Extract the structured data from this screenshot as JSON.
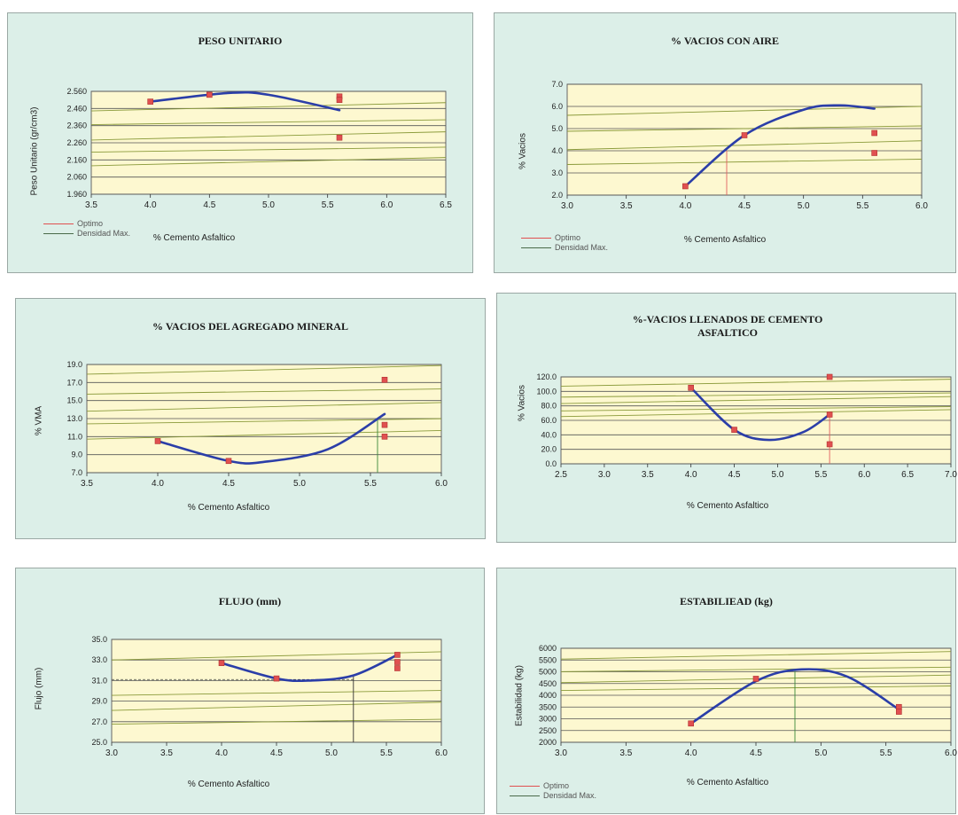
{
  "chart_data": [
    {
      "type": "line",
      "title": "PESO UNITARIO",
      "xlabel": "% Cemento Asfaltico",
      "ylabel": "Peso Unitario (gr/cm3)",
      "xlim": [
        3.5,
        6.5
      ],
      "ylim": [
        1.96,
        2.56
      ],
      "xticks": [
        "3.5",
        "4.0",
        "4.5",
        "5.0",
        "5.5",
        "6.0",
        "6.5"
      ],
      "yticks": [
        "1.960",
        "2.060",
        "2.160",
        "2.260",
        "2.360",
        "2.460",
        "2.560"
      ],
      "points": [
        {
          "x": 4.0,
          "y": 2.5
        },
        {
          "x": 4.5,
          "y": 2.54
        },
        {
          "x": 5.6,
          "y": 2.53
        },
        {
          "x": 5.6,
          "y": 2.51
        },
        {
          "x": 5.6,
          "y": 2.29
        }
      ],
      "curve": [
        {
          "x": 4.0,
          "y": 2.5
        },
        {
          "x": 4.65,
          "y": 2.55
        },
        {
          "x": 5.0,
          "y": 2.54
        },
        {
          "x": 5.6,
          "y": 2.45
        }
      ],
      "guides": {
        "hy": [
          2.47,
          2.38,
          2.3,
          2.22,
          2.15
        ]
      },
      "legend": [
        "Optimo",
        "Densidad Max."
      ]
    },
    {
      "type": "line",
      "title": "% VACIOS CON AIRE",
      "xlabel": "% Cemento Asfaltico",
      "ylabel": "% Vacios",
      "xlim": [
        3.0,
        6.0
      ],
      "ylim": [
        2.0,
        7.0
      ],
      "xticks": [
        "3.0",
        "3.5",
        "4.0",
        "4.5",
        "5.0",
        "5.5",
        "6.0"
      ],
      "yticks": [
        "2.0",
        "3.0",
        "4.0",
        "5.0",
        "6.0",
        "7.0"
      ],
      "points": [
        {
          "x": 4.0,
          "y": 2.4
        },
        {
          "x": 4.5,
          "y": 4.7
        },
        {
          "x": 5.6,
          "y": 4.8
        },
        {
          "x": 5.6,
          "y": 3.9
        }
      ],
      "curve": [
        {
          "x": 4.0,
          "y": 2.4
        },
        {
          "x": 4.5,
          "y": 4.7
        },
        {
          "x": 5.0,
          "y": 5.85
        },
        {
          "x": 5.3,
          "y": 6.05
        },
        {
          "x": 5.6,
          "y": 5.9
        }
      ],
      "guides": {
        "hy": [
          5.8,
          5.0,
          4.25,
          3.5
        ],
        "vx": [
          4.35
        ],
        "vx_color": "#e06060"
      },
      "legend": [
        "Optimo",
        "Densidad Max."
      ]
    },
    {
      "type": "line",
      "title": "% VACIOS DEL AGREGADO MINERAL",
      "xlabel": "% Cemento Asfaltico",
      "ylabel": "% VMA",
      "xlim": [
        3.5,
        6.0
      ],
      "ylim": [
        7.0,
        19.0
      ],
      "xticks": [
        "3.5",
        "4.0",
        "4.5",
        "5.0",
        "5.5",
        "6.0"
      ],
      "yticks": [
        "7.0",
        "9.0",
        "11.0",
        "13.0",
        "15.0",
        "17.0",
        "19.0"
      ],
      "points": [
        {
          "x": 4.0,
          "y": 10.5
        },
        {
          "x": 4.5,
          "y": 8.3
        },
        {
          "x": 5.6,
          "y": 17.3
        },
        {
          "x": 5.6,
          "y": 12.3
        },
        {
          "x": 5.6,
          "y": 11.0
        }
      ],
      "curve": [
        {
          "x": 4.0,
          "y": 10.5
        },
        {
          "x": 4.5,
          "y": 8.3
        },
        {
          "x": 4.75,
          "y": 8.2
        },
        {
          "x": 5.2,
          "y": 9.6
        },
        {
          "x": 5.6,
          "y": 13.5
        }
      ],
      "guides": {
        "hy": [
          18.4,
          16.0,
          14.3,
          12.7,
          11.2
        ],
        "vx": [
          5.55
        ],
        "vx_color": "#3a8a3a"
      },
      "legend": []
    },
    {
      "type": "line",
      "title": "%-VACIOS LLENADOS DE CEMENTO ASFALTICO",
      "xlabel": "% Cemento Asfaltico",
      "ylabel": "% Vacios",
      "xlim": [
        2.5,
        7.0
      ],
      "ylim": [
        0.0,
        120.0
      ],
      "xticks": [
        "2.5",
        "3.0",
        "3.5",
        "4.0",
        "4.5",
        "5.0",
        "5.5",
        "6.0",
        "6.5",
        "7.0"
      ],
      "yticks": [
        "0.0",
        "20.0",
        "40.0",
        "60.0",
        "80.0",
        "100.0",
        "120.0"
      ],
      "points": [
        {
          "x": 4.0,
          "y": 105
        },
        {
          "x": 4.5,
          "y": 47
        },
        {
          "x": 5.6,
          "y": 120
        },
        {
          "x": 5.6,
          "y": 68
        },
        {
          "x": 5.6,
          "y": 27
        }
      ],
      "curve": [
        {
          "x": 4.0,
          "y": 105
        },
        {
          "x": 4.5,
          "y": 47
        },
        {
          "x": 4.9,
          "y": 33
        },
        {
          "x": 5.3,
          "y": 44
        },
        {
          "x": 5.6,
          "y": 68
        }
      ],
      "guides": {
        "hy": [
          112,
          95,
          88,
          76,
          70
        ],
        "vx": [
          5.6
        ],
        "vx_color": "#e06060"
      },
      "legend": []
    },
    {
      "type": "line",
      "title": "FLUJO (mm)",
      "xlabel": "% Cemento Asfaltico",
      "ylabel": "Flujo (mm)",
      "xlim": [
        3.0,
        6.0
      ],
      "ylim": [
        25.0,
        35.0
      ],
      "xticks": [
        "3.0",
        "3.5",
        "4.0",
        "4.5",
        "5.0",
        "5.5",
        "6.0"
      ],
      "yticks": [
        "25.0",
        "27.0",
        "29.0",
        "31.0",
        "33.0",
        "35.0"
      ],
      "points": [
        {
          "x": 4.0,
          "y": 32.7
        },
        {
          "x": 4.5,
          "y": 31.2
        },
        {
          "x": 5.6,
          "y": 33.5
        },
        {
          "x": 5.6,
          "y": 32.8
        },
        {
          "x": 5.6,
          "y": 32.2
        }
      ],
      "curve": [
        {
          "x": 4.0,
          "y": 32.7
        },
        {
          "x": 4.5,
          "y": 31.2
        },
        {
          "x": 4.8,
          "y": 31.0
        },
        {
          "x": 5.2,
          "y": 31.5
        },
        {
          "x": 5.6,
          "y": 33.5
        }
      ],
      "guides": {
        "hy": [
          33.4,
          29.8,
          28.5,
          27.0
        ],
        "vx": [
          5.2
        ],
        "vx_color": "#333333",
        "hdash": [
          31.1
        ]
      },
      "legend": []
    },
    {
      "type": "line",
      "title": "ESTABILIEAD (kg)",
      "xlabel": "% Cemento Asfaltico",
      "ylabel": "Estabilidad (kg)",
      "xlim": [
        3.0,
        6.0
      ],
      "ylim": [
        2000,
        6000
      ],
      "xticks": [
        "3.0",
        "3.5",
        "4.0",
        "4.5",
        "5.0",
        "5.5",
        "6.0"
      ],
      "yticks": [
        "2000",
        "2500",
        "3000",
        "3500",
        "4000",
        "4500",
        "5000",
        "5500",
        "6000"
      ],
      "points": [
        {
          "x": 4.0,
          "y": 2800
        },
        {
          "x": 4.5,
          "y": 4700
        },
        {
          "x": 5.6,
          "y": 3500
        },
        {
          "x": 5.6,
          "y": 3300
        }
      ],
      "curve": [
        {
          "x": 4.0,
          "y": 2800
        },
        {
          "x": 4.5,
          "y": 4600
        },
        {
          "x": 4.85,
          "y": 5100
        },
        {
          "x": 5.2,
          "y": 4800
        },
        {
          "x": 5.6,
          "y": 3400
        }
      ],
      "guides": {
        "hy": [
          5700,
          5100,
          4700,
          4300
        ],
        "vx": [
          4.8
        ],
        "vx_color": "#3a8a3a"
      },
      "legend": [
        "Optimo",
        "Densidad Max."
      ]
    }
  ],
  "legend_colors": {
    "Optimo": "#e05050",
    "Densidad Max.": "#4a6a4a"
  },
  "colors": {
    "curve": "#2b3ea8",
    "marker": "#e05050",
    "plot_bg": "#fdf8d0",
    "panel_bg": "#dcefe8",
    "guide": "#8a9a3a"
  }
}
